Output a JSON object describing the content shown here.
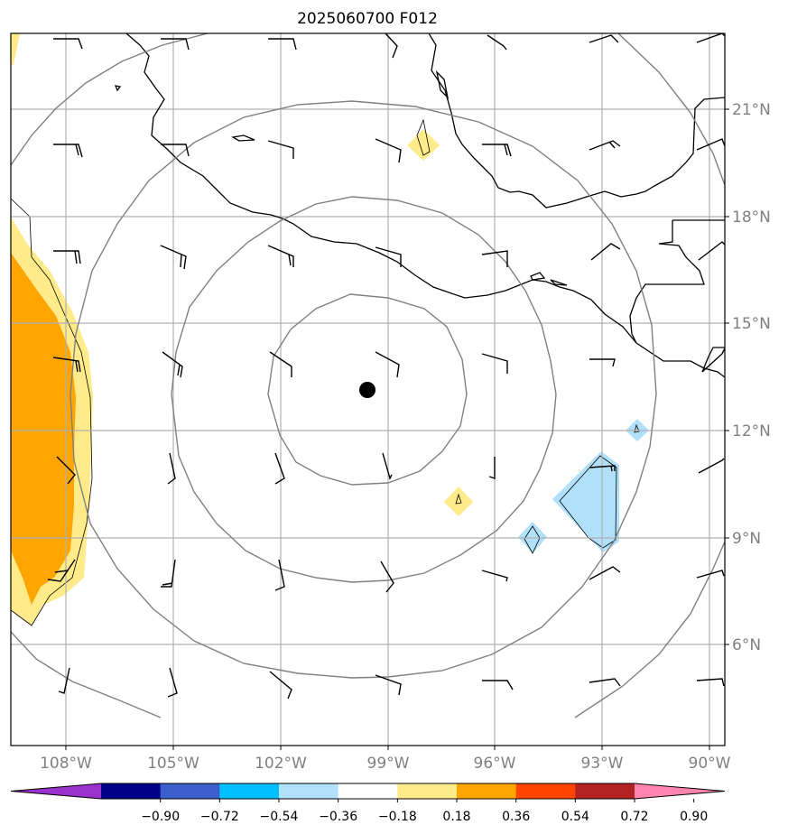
{
  "title": "2025060700 F012",
  "x_tick_labels": [
    "108°W",
    "105°W",
    "102°W",
    "99°W",
    "96°W",
    "93°W",
    "90°W"
  ],
  "y_tick_labels": [
    "21°N",
    "18°N",
    "15°N",
    "12°N",
    "9°N",
    "6°N"
  ],
  "colorbar": {
    "tick_labels": [
      "−0.90",
      "−0.72",
      "−0.54",
      "−0.36",
      "−0.18",
      "0.18",
      "0.36",
      "0.54",
      "0.72",
      "0.90"
    ],
    "colors": [
      "#9932cc",
      "#00008b",
      "#3a5fcd",
      "#00bfff",
      "#b0e0fa",
      "#ffffff",
      "#ffeb8a",
      "#ffa500",
      "#ff4500",
      "#b22222",
      "#ff85b0"
    ]
  },
  "map": {
    "lon_range": [
      -109.5,
      -89.4
    ],
    "lat_range": [
      2.7,
      22.8
    ],
    "center_marker": "storm-center-dot",
    "range_rings": 4,
    "gridlines": true,
    "fill_colors": {
      "positive_low": "#ffeb8a",
      "positive_mid": "#ffa500",
      "negative_low": "#b0e0fa"
    }
  }
}
